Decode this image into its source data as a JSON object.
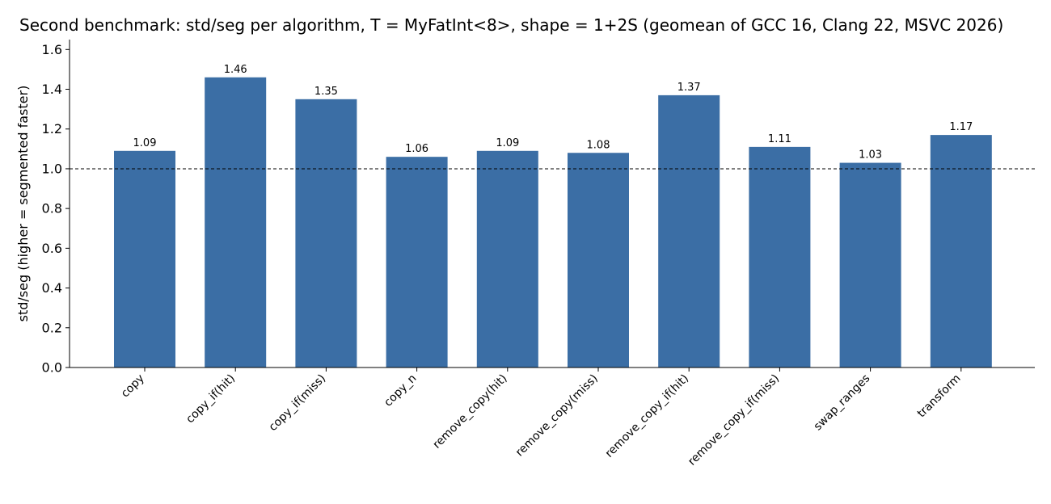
{
  "chart_data": {
    "type": "bar",
    "title": "Second benchmark: std/seg per algorithm, T = MyFatInt<8>, shape = 1+2S (geomean of GCC 16, Clang 22, MSVC 2026)",
    "xlabel": "",
    "ylabel": "std/seg  (higher = segmented faster)",
    "categories": [
      "copy",
      "copy_if(hit)",
      "copy_if(miss)",
      "copy_n",
      "remove_copy(hit)",
      "remove_copy(miss)",
      "remove_copy_if(hit)",
      "remove_copy_if(miss)",
      "swap_ranges",
      "transform"
    ],
    "values": [
      1.09,
      1.46,
      1.35,
      1.06,
      1.09,
      1.08,
      1.37,
      1.11,
      1.03,
      1.17
    ],
    "data_labels": [
      "1.09",
      "1.46",
      "1.35",
      "1.06",
      "1.09",
      "1.08",
      "1.37",
      "1.11",
      "1.03",
      "1.17"
    ],
    "ylim": [
      0,
      1.65
    ],
    "yticks": [
      0.0,
      0.2,
      0.4,
      0.6,
      0.8,
      1.0,
      1.2,
      1.4,
      1.6
    ],
    "ytick_labels": [
      "0.0",
      "0.2",
      "0.4",
      "0.6",
      "0.8",
      "1.0",
      "1.2",
      "1.4",
      "1.6"
    ],
    "reference_line": 1.0,
    "grid": false,
    "bar_color": "#3b6ea5"
  }
}
